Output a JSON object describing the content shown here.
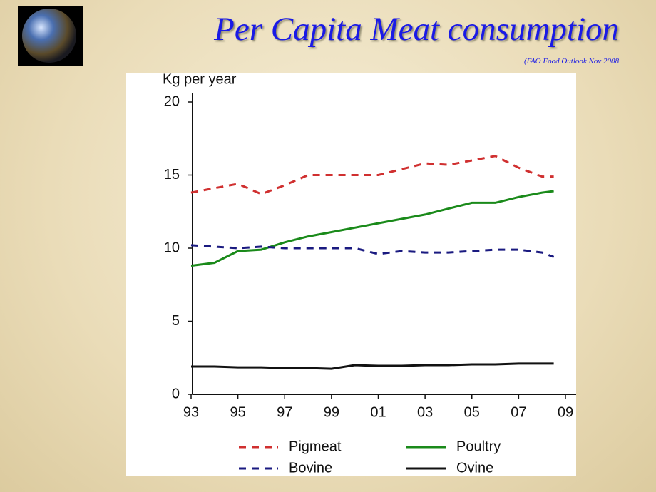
{
  "title": "Per Capita Meat consumption",
  "subtitle": "(FAO Food Outlook Nov 2008",
  "chart_data": {
    "type": "line",
    "y_label": "Kg per year",
    "x": [
      1993,
      1994,
      1995,
      1996,
      1997,
      1998,
      1999,
      2000,
      2001,
      2002,
      2003,
      2004,
      2005,
      2006,
      2007,
      2008,
      2008.5
    ],
    "series": [
      {
        "name": "Pigmeat",
        "color": "#d03030",
        "dashed": true,
        "values": [
          13.8,
          14.1,
          14.4,
          13.7,
          14.3,
          15.0,
          15.0,
          15.0,
          15.0,
          15.4,
          15.8,
          15.7,
          16.0,
          16.3,
          15.5,
          14.9,
          14.9
        ]
      },
      {
        "name": "Poultry",
        "color": "#1a8a1a",
        "dashed": false,
        "values": [
          8.8,
          9.0,
          9.8,
          9.9,
          10.4,
          10.8,
          11.1,
          11.4,
          11.7,
          12.0,
          12.3,
          12.7,
          13.1,
          13.1,
          13.5,
          13.8,
          13.9
        ]
      },
      {
        "name": "Bovine",
        "color": "#1a1a80",
        "dashed": true,
        "values": [
          10.2,
          10.1,
          10.0,
          10.1,
          10.0,
          10.0,
          10.0,
          10.0,
          9.6,
          9.8,
          9.7,
          9.7,
          9.8,
          9.9,
          9.9,
          9.7,
          9.4
        ]
      },
      {
        "name": "Ovine",
        "color": "#111111",
        "dashed": false,
        "values": [
          1.9,
          1.9,
          1.85,
          1.85,
          1.8,
          1.8,
          1.75,
          2.0,
          1.95,
          1.95,
          2.0,
          2.0,
          2.05,
          2.05,
          2.1,
          2.1,
          2.1
        ]
      }
    ],
    "xlim": [
      1993,
      2009
    ],
    "xticks": [
      {
        "value": 1993,
        "label": "93"
      },
      {
        "value": 1995,
        "label": "95"
      },
      {
        "value": 1997,
        "label": "97"
      },
      {
        "value": 1999,
        "label": "99"
      },
      {
        "value": 2001,
        "label": "01"
      },
      {
        "value": 2003,
        "label": "03"
      },
      {
        "value": 2005,
        "label": "05"
      },
      {
        "value": 2007,
        "label": "07"
      },
      {
        "value": 2009,
        "label": "09"
      }
    ],
    "ylim": [
      0,
      20
    ],
    "yticks": [
      0,
      5,
      10,
      15,
      20
    ]
  }
}
